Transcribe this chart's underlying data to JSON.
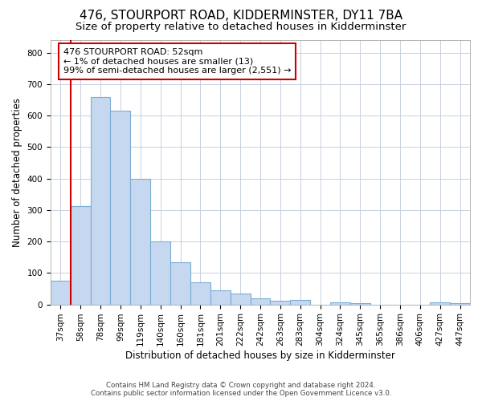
{
  "title": "476, STOURPORT ROAD, KIDDERMINSTER, DY11 7BA",
  "subtitle": "Size of property relative to detached houses in Kidderminster",
  "xlabel": "Distribution of detached houses by size in Kidderminster",
  "ylabel": "Number of detached properties",
  "categories": [
    "37sqm",
    "58sqm",
    "78sqm",
    "99sqm",
    "119sqm",
    "140sqm",
    "160sqm",
    "181sqm",
    "201sqm",
    "222sqm",
    "242sqm",
    "263sqm",
    "283sqm",
    "304sqm",
    "324sqm",
    "345sqm",
    "365sqm",
    "386sqm",
    "406sqm",
    "427sqm",
    "447sqm"
  ],
  "values": [
    75,
    313,
    660,
    615,
    400,
    200,
    133,
    70,
    45,
    35,
    20,
    12,
    13,
    0,
    7,
    5,
    0,
    0,
    0,
    7,
    5
  ],
  "bar_color": "#c5d8f0",
  "bar_edge_color": "#7badd4",
  "vline_x": 1.5,
  "vline_color": "#cc0000",
  "annotation_text": "476 STOURPORT ROAD: 52sqm\n← 1% of detached houses are smaller (13)\n99% of semi-detached houses are larger (2,551) →",
  "annotation_box_color": "#ffffff",
  "annotation_box_edge_color": "#cc0000",
  "ylim": [
    0,
    840
  ],
  "yticks": [
    0,
    100,
    200,
    300,
    400,
    500,
    600,
    700,
    800
  ],
  "title_fontsize": 11,
  "subtitle_fontsize": 9.5,
  "axis_fontsize": 8.5,
  "tick_fontsize": 7.5,
  "footer_line1": "Contains HM Land Registry data © Crown copyright and database right 2024.",
  "footer_line2": "Contains public sector information licensed under the Open Government Licence v3.0.",
  "background_color": "#ffffff",
  "grid_color": "#c8d0e0"
}
